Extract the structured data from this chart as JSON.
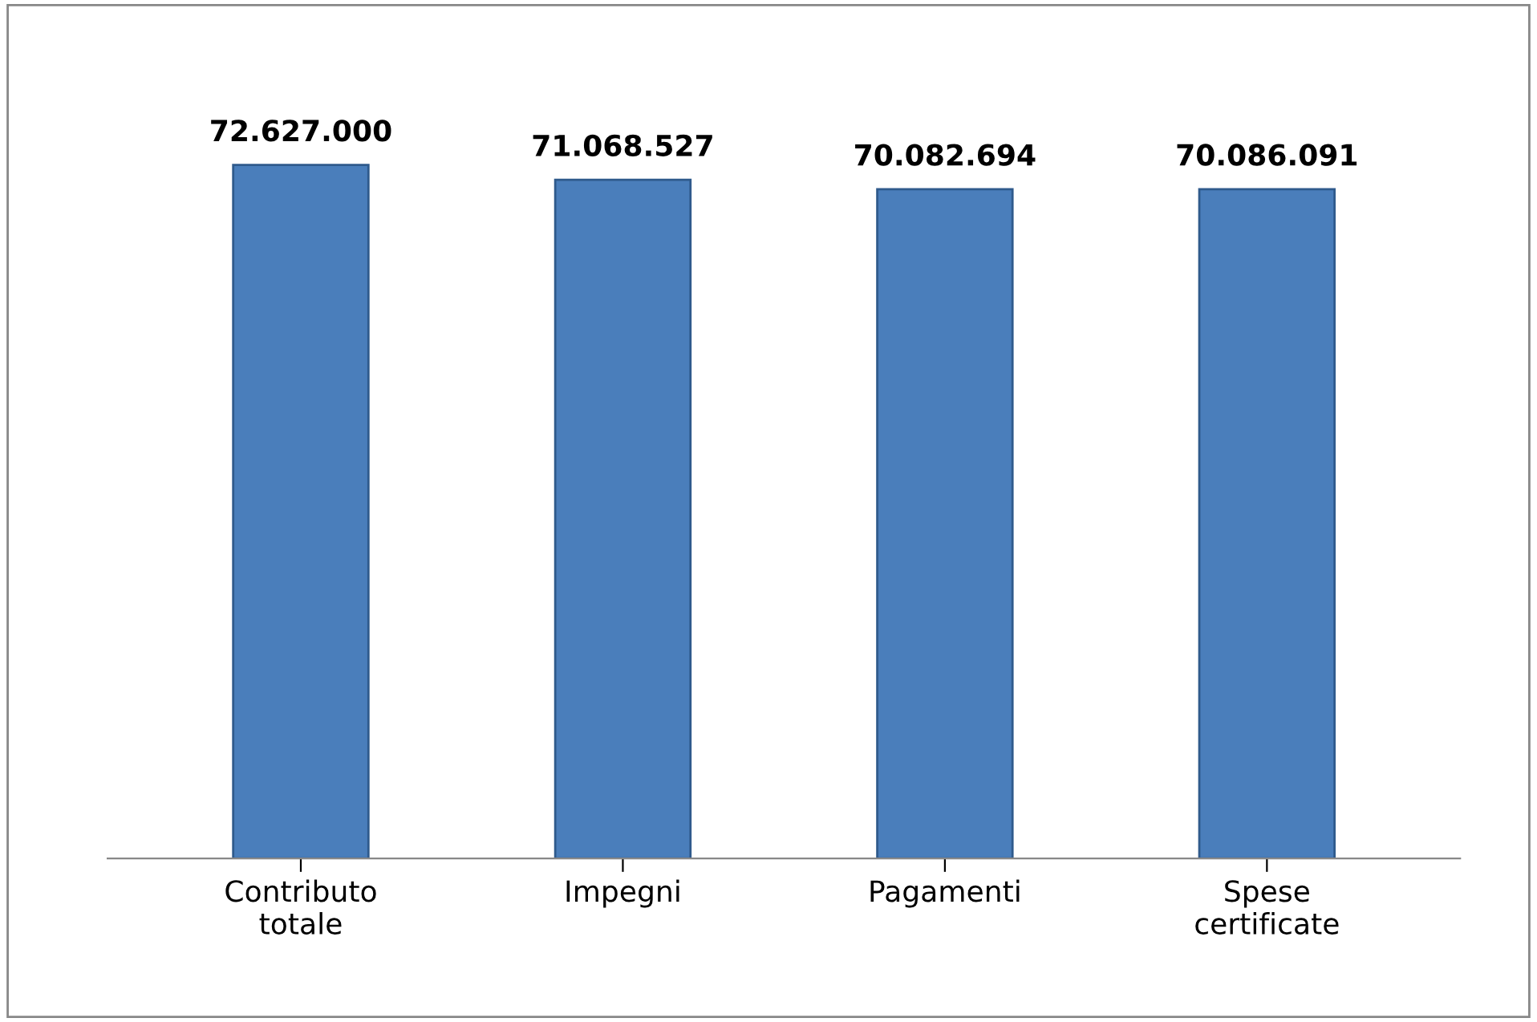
{
  "chart_data": {
    "type": "bar",
    "categories": [
      "Contributo\ntotale",
      "Impegni",
      "Pagamenti",
      "Spese\ncertificate"
    ],
    "values": [
      72627000,
      71068527,
      70082694,
      70086091
    ],
    "value_labels": [
      "72.627.000",
      "71.068.527",
      "70.082.694",
      "70.086.091"
    ],
    "color": "#4a7ebb",
    "tick_labels": "x",
    "grid": false
  }
}
